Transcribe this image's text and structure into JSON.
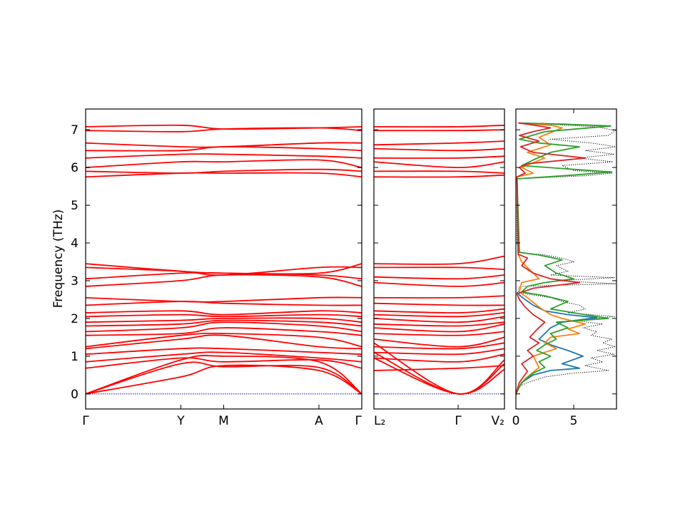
{
  "chart_data": [
    {
      "type": "line",
      "panel": "band-structure-main",
      "ylabel": "Frequency (THz)",
      "ylim": [
        -0.4,
        7.55
      ],
      "yticks": [
        "0",
        "1",
        "2",
        "3",
        "4",
        "5",
        "6",
        "7"
      ],
      "xticks": [
        "Γ",
        "Y",
        "M",
        "A",
        "Γ"
      ],
      "path_nodes": [
        0,
        1.0,
        1.45,
        2.45,
        2.9
      ],
      "band_color": "#ff0000",
      "zero_line_color": "#0000cc",
      "bands_at_nodes": [
        [
          0,
          0.45,
          0.75,
          0.62,
          0
        ],
        [
          0,
          0.8,
          0.72,
          0.7,
          0
        ],
        [
          0,
          0.9,
          1.0,
          0.85,
          0
        ],
        [
          0.68,
          0.95,
          0.85,
          0.9,
          0.68
        ],
        [
          0.85,
          1.05,
          1.1,
          0.95,
          0.85
        ],
        [
          1.05,
          1.2,
          1.2,
          1.1,
          1.05
        ],
        [
          1.2,
          1.45,
          1.55,
          1.25,
          1.2
        ],
        [
          1.25,
          1.55,
          1.6,
          1.5,
          1.25
        ],
        [
          1.55,
          1.6,
          1.75,
          1.65,
          1.55
        ],
        [
          1.65,
          1.75,
          1.9,
          1.8,
          1.65
        ],
        [
          1.8,
          1.85,
          1.95,
          1.9,
          1.8
        ],
        [
          1.9,
          1.95,
          2.0,
          2.0,
          1.9
        ],
        [
          2.05,
          2.1,
          2.05,
          2.1,
          2.05
        ],
        [
          2.15,
          2.2,
          2.1,
          2.2,
          2.15
        ],
        [
          2.35,
          2.45,
          2.4,
          2.35,
          2.35
        ],
        [
          2.55,
          2.45,
          2.45,
          2.55,
          2.55
        ],
        [
          2.85,
          3.0,
          3.15,
          3.1,
          2.85
        ],
        [
          3.05,
          3.2,
          3.2,
          3.15,
          3.05
        ],
        [
          3.35,
          3.25,
          3.15,
          3.35,
          3.35
        ],
        [
          3.45,
          3.25,
          3.2,
          3.2,
          3.45
        ],
        [
          5.75,
          5.85,
          5.85,
          5.85,
          5.75
        ],
        [
          5.9,
          5.85,
          5.9,
          5.95,
          5.9
        ],
        [
          6.0,
          6.15,
          6.15,
          6.2,
          6.0
        ],
        [
          6.25,
          6.35,
          6.35,
          6.3,
          6.25
        ],
        [
          6.45,
          6.45,
          6.55,
          6.5,
          6.45
        ],
        [
          6.65,
          6.55,
          6.55,
          6.65,
          6.65
        ],
        [
          6.98,
          6.95,
          7.02,
          7.05,
          6.98
        ],
        [
          7.08,
          7.12,
          7.02,
          7.05,
          7.08
        ]
      ]
    },
    {
      "type": "line",
      "panel": "band-structure-secondary",
      "xticks": [
        "L₂",
        "Γ",
        "V₂"
      ],
      "path_nodes": [
        0,
        1.0,
        1.55
      ],
      "band_color": "#ff0000",
      "bands_at_nodes": [
        [
          0.95,
          0,
          0.65
        ],
        [
          1.1,
          0,
          0.8
        ],
        [
          1.35,
          0,
          0.9
        ],
        [
          0.62,
          0.68,
          0.75
        ],
        [
          0.95,
          0.85,
          1.05
        ],
        [
          1.1,
          1.05,
          1.2
        ],
        [
          1.25,
          1.2,
          1.35
        ],
        [
          1.45,
          1.25,
          1.5
        ],
        [
          1.6,
          1.55,
          1.65
        ],
        [
          1.75,
          1.65,
          1.85
        ],
        [
          1.85,
          1.8,
          1.9
        ],
        [
          2.0,
          1.9,
          2.05
        ],
        [
          2.1,
          2.05,
          2.15
        ],
        [
          2.2,
          2.15,
          2.25
        ],
        [
          2.4,
          2.35,
          2.35
        ],
        [
          2.55,
          2.55,
          2.6
        ],
        [
          2.95,
          2.85,
          2.95
        ],
        [
          3.1,
          3.05,
          3.15
        ],
        [
          3.35,
          3.35,
          3.3
        ],
        [
          3.45,
          3.45,
          3.65
        ],
        [
          5.75,
          5.75,
          5.8
        ],
        [
          5.9,
          5.9,
          5.85
        ],
        [
          6.15,
          6.0,
          6.15
        ],
        [
          6.25,
          6.25,
          6.3
        ],
        [
          6.5,
          6.45,
          6.5
        ],
        [
          6.6,
          6.65,
          6.7
        ],
        [
          6.98,
          6.98,
          7.0
        ],
        [
          7.08,
          7.08,
          7.12
        ]
      ]
    },
    {
      "type": "line",
      "panel": "density-of-states",
      "xticks": [
        "0",
        "5"
      ],
      "xlim": [
        0,
        8.7
      ],
      "series": [
        {
          "color": "#000000",
          "style": "dotted",
          "points": [
            [
              0,
              -0.05
            ],
            [
              0.3,
              0.2
            ],
            [
              1.0,
              0.3
            ],
            [
              2.5,
              0.45
            ],
            [
              5.0,
              0.55
            ],
            [
              8.0,
              0.62
            ],
            [
              6.0,
              0.75
            ],
            [
              7.5,
              0.85
            ],
            [
              6.5,
              0.95
            ],
            [
              8.5,
              1.05
            ],
            [
              7.0,
              1.15
            ],
            [
              8.6,
              1.25
            ],
            [
              7.5,
              1.35
            ],
            [
              8.3,
              1.45
            ],
            [
              6.5,
              1.55
            ],
            [
              7.0,
              1.65
            ],
            [
              5.8,
              1.75
            ],
            [
              7.5,
              1.85
            ],
            [
              5.0,
              1.95
            ],
            [
              8.5,
              2.05
            ],
            [
              4.5,
              2.15
            ],
            [
              6.0,
              2.25
            ],
            [
              5.5,
              2.35
            ],
            [
              4.0,
              2.45
            ],
            [
              3.0,
              2.55
            ],
            [
              1.5,
              2.62
            ],
            [
              0.2,
              2.7
            ],
            [
              0.3,
              2.85
            ],
            [
              8.6,
              2.92
            ],
            [
              3.5,
              3.0
            ],
            [
              8.5,
              3.08
            ],
            [
              3.0,
              3.15
            ],
            [
              4.5,
              3.25
            ],
            [
              3.5,
              3.4
            ],
            [
              5.0,
              3.5
            ],
            [
              4.0,
              3.6
            ],
            [
              2.5,
              3.68
            ],
            [
              0.3,
              3.75
            ],
            [
              0.1,
              4.0
            ],
            [
              0.1,
              5.7
            ],
            [
              6.0,
              5.78
            ],
            [
              8.3,
              5.85
            ],
            [
              5.0,
              5.92
            ],
            [
              4.0,
              6.05
            ],
            [
              8.4,
              6.15
            ],
            [
              5.5,
              6.25
            ],
            [
              8.5,
              6.35
            ],
            [
              6.0,
              6.45
            ],
            [
              8.7,
              6.55
            ],
            [
              6.5,
              6.65
            ],
            [
              3.0,
              6.75
            ],
            [
              8.0,
              6.85
            ],
            [
              8.6,
              6.98
            ],
            [
              7.0,
              7.08
            ],
            [
              0.3,
              7.18
            ]
          ]
        },
        {
          "color": "#1f77b4",
          "style": "solid",
          "points": [
            [
              0,
              0
            ],
            [
              0.5,
              0.3
            ],
            [
              1.5,
              0.5
            ],
            [
              3.0,
              0.62
            ],
            [
              5.5,
              0.68
            ],
            [
              4.0,
              0.8
            ],
            [
              5.8,
              1.0
            ],
            [
              4.5,
              1.15
            ],
            [
              3.0,
              1.3
            ],
            [
              2.0,
              1.45
            ],
            [
              2.5,
              1.6
            ],
            [
              3.0,
              1.75
            ],
            [
              4.0,
              1.9
            ],
            [
              7.0,
              2.02
            ],
            [
              4.5,
              2.1
            ],
            [
              2.5,
              2.2
            ],
            [
              1.5,
              2.35
            ],
            [
              0.8,
              2.5
            ],
            [
              0.3,
              2.62
            ],
            [
              0.1,
              2.7
            ]
          ]
        },
        {
          "color": "#ff7f0e",
          "style": "solid",
          "points": [
            [
              0,
              0.05
            ],
            [
              0.8,
              0.4
            ],
            [
              2.0,
              0.7
            ],
            [
              1.5,
              1.0
            ],
            [
              3.5,
              1.2
            ],
            [
              2.5,
              1.35
            ],
            [
              3.0,
              1.5
            ],
            [
              5.5,
              1.6
            ],
            [
              4.5,
              1.72
            ],
            [
              6.0,
              1.85
            ],
            [
              4.0,
              2.0
            ],
            [
              3.0,
              2.1
            ],
            [
              2.0,
              2.3
            ],
            [
              1.0,
              2.55
            ],
            [
              0.3,
              2.7
            ],
            [
              0.5,
              2.95
            ],
            [
              2.0,
              3.05
            ],
            [
              1.5,
              3.2
            ],
            [
              0.5,
              3.5
            ],
            [
              0.2,
              3.7
            ],
            [
              0.1,
              5.75
            ],
            [
              1.5,
              5.85
            ],
            [
              0.5,
              6.0
            ],
            [
              2.5,
              6.25
            ],
            [
              1.0,
              6.4
            ],
            [
              3.0,
              6.6
            ],
            [
              2.0,
              6.8
            ],
            [
              4.0,
              7.05
            ],
            [
              3.0,
              7.12
            ],
            [
              0.3,
              7.18
            ]
          ]
        },
        {
          "color": "#2ca02c",
          "style": "solid",
          "points": [
            [
              0,
              0
            ],
            [
              0.5,
              0.3
            ],
            [
              1.5,
              0.55
            ],
            [
              2.5,
              0.7
            ],
            [
              2.0,
              0.85
            ],
            [
              3.0,
              1.0
            ],
            [
              1.8,
              1.15
            ],
            [
              2.5,
              1.3
            ],
            [
              3.5,
              1.45
            ],
            [
              3.0,
              1.6
            ],
            [
              4.5,
              1.75
            ],
            [
              3.5,
              1.9
            ],
            [
              8.0,
              2.0
            ],
            [
              5.0,
              2.15
            ],
            [
              3.0,
              2.25
            ],
            [
              4.5,
              2.45
            ],
            [
              2.5,
              2.6
            ],
            [
              0.5,
              2.7
            ],
            [
              1.0,
              2.85
            ],
            [
              2.5,
              2.95
            ],
            [
              5.0,
              3.05
            ],
            [
              3.5,
              3.2
            ],
            [
              2.5,
              3.4
            ],
            [
              4.0,
              3.55
            ],
            [
              2.0,
              3.68
            ],
            [
              0.3,
              3.75
            ],
            [
              0.1,
              5.7
            ],
            [
              5.0,
              5.8
            ],
            [
              8.3,
              5.88
            ],
            [
              5.0,
              5.95
            ],
            [
              0.5,
              6.05
            ],
            [
              1.5,
              6.2
            ],
            [
              3.0,
              6.4
            ],
            [
              5.5,
              6.55
            ],
            [
              2.0,
              6.65
            ],
            [
              0.3,
              6.75
            ],
            [
              2.5,
              6.95
            ],
            [
              8.2,
              7.1
            ],
            [
              4.0,
              7.15
            ],
            [
              0.3,
              7.18
            ]
          ]
        },
        {
          "color": "#d62728",
          "style": "solid",
          "points": [
            [
              0,
              0
            ],
            [
              0.3,
              0.3
            ],
            [
              1.0,
              0.6
            ],
            [
              0.5,
              0.8
            ],
            [
              1.5,
              1.0
            ],
            [
              1.0,
              1.15
            ],
            [
              2.0,
              1.35
            ],
            [
              1.2,
              1.5
            ],
            [
              1.8,
              1.7
            ],
            [
              2.5,
              1.9
            ],
            [
              1.5,
              2.1
            ],
            [
              0.8,
              2.3
            ],
            [
              0.3,
              2.5
            ],
            [
              0.1,
              2.65
            ],
            [
              1.5,
              2.8
            ],
            [
              5.5,
              2.95
            ],
            [
              3.0,
              3.05
            ],
            [
              1.5,
              3.2
            ],
            [
              0.5,
              3.4
            ],
            [
              1.0,
              3.6
            ],
            [
              0.2,
              3.7
            ],
            [
              0.1,
              5.75
            ],
            [
              0.8,
              5.85
            ],
            [
              0.3,
              6.0
            ],
            [
              1.0,
              6.1
            ],
            [
              6.0,
              6.25
            ],
            [
              1.5,
              6.4
            ],
            [
              0.4,
              6.55
            ],
            [
              2.0,
              6.7
            ],
            [
              0.3,
              6.85
            ],
            [
              1.5,
              6.95
            ],
            [
              3.0,
              7.05
            ],
            [
              1.0,
              7.15
            ],
            [
              0.2,
              7.18
            ]
          ]
        }
      ]
    }
  ]
}
